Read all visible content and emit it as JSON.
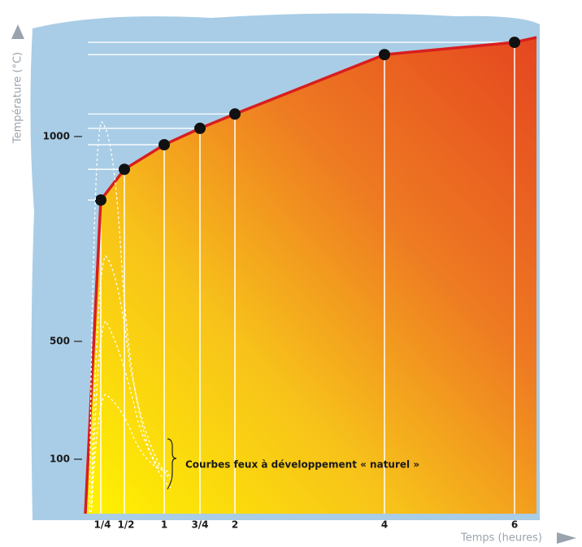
{
  "chart_data": {
    "type": "line",
    "y_label": "Température (°C)",
    "x_label": "Temps (heures)",
    "annotation": "Courbes feux à développement « naturel »",
    "categories": [
      "1/4",
      "1/2",
      "1",
      "3/4",
      "2",
      "4",
      "6"
    ],
    "series": [
      {
        "name": null,
        "color": "#d81e1e",
        "values": [
          845,
          920,
          980,
          1020,
          1055,
          1200,
          1230
        ]
      }
    ],
    "ylim": [
      0,
      1250
    ],
    "yticks": [
      100,
      500,
      1000
    ],
    "grid": true
  }
}
